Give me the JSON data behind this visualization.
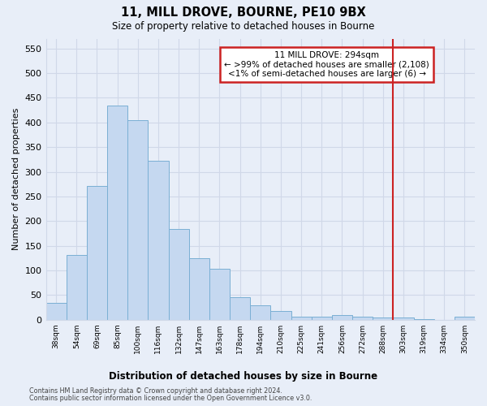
{
  "title_line1": "11, MILL DROVE, BOURNE, PE10 9BX",
  "title_line2": "Size of property relative to detached houses in Bourne",
  "xlabel": "Distribution of detached houses by size in Bourne",
  "ylabel": "Number of detached properties",
  "footer_line1": "Contains HM Land Registry data © Crown copyright and database right 2024.",
  "footer_line2": "Contains public sector information licensed under the Open Government Licence v3.0.",
  "categories": [
    "38sqm",
    "54sqm",
    "69sqm",
    "85sqm",
    "100sqm",
    "116sqm",
    "132sqm",
    "147sqm",
    "163sqm",
    "178sqm",
    "194sqm",
    "210sqm",
    "225sqm",
    "241sqm",
    "256sqm",
    "272sqm",
    "288sqm",
    "303sqm",
    "319sqm",
    "334sqm",
    "350sqm"
  ],
  "values": [
    35,
    132,
    272,
    435,
    405,
    322,
    184,
    125,
    104,
    46,
    29,
    18,
    7,
    7,
    10,
    6,
    4,
    4,
    2,
    0,
    6
  ],
  "bar_color": "#c5d8f0",
  "bar_edge_color": "#7aafd4",
  "grid_color": "#d0d8e8",
  "background_color": "#e8eef8",
  "vline_x": 16.5,
  "vline_color": "#cc2222",
  "annotation_text": "11 MILL DROVE: 294sqm\n← >99% of detached houses are smaller (2,108)\n<1% of semi-detached houses are larger (6) →",
  "annotation_box_color": "#cc2222",
  "ylim": [
    0,
    570
  ],
  "yticks": [
    0,
    50,
    100,
    150,
    200,
    250,
    300,
    350,
    400,
    450,
    500,
    550
  ]
}
